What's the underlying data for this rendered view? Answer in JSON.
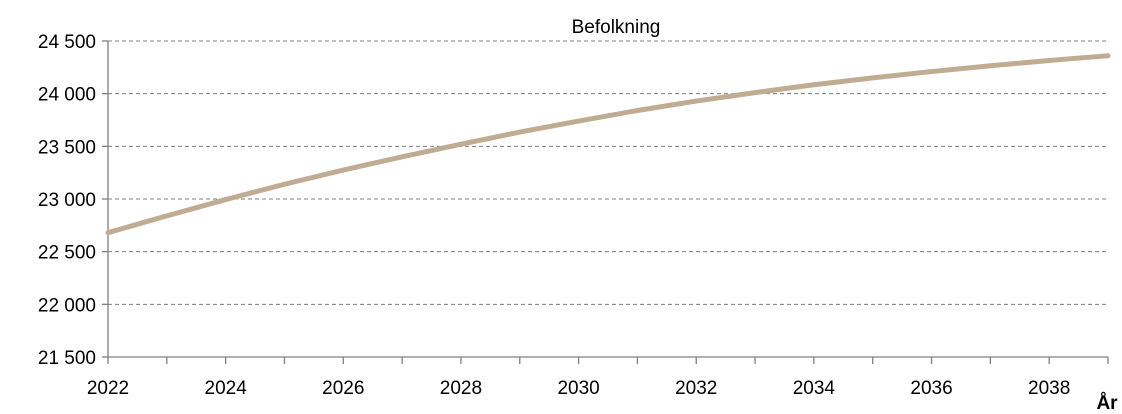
{
  "chart_data": {
    "type": "line",
    "title": "Befolkning",
    "xlabel": "År",
    "ylabel": "",
    "xlim": [
      2022,
      2039
    ],
    "ylim": [
      21500,
      24500
    ],
    "x_ticks": [
      2022,
      2023,
      2024,
      2025,
      2026,
      2027,
      2028,
      2029,
      2030,
      2031,
      2032,
      2033,
      2034,
      2035,
      2036,
      2037,
      2038,
      2039
    ],
    "x_tick_labels": [
      "2022",
      "2024",
      "2026",
      "2028",
      "2030",
      "2032",
      "2034",
      "2036",
      "2038"
    ],
    "x_tick_label_values": [
      2022,
      2024,
      2026,
      2028,
      2030,
      2032,
      2034,
      2036,
      2038
    ],
    "y_ticks": [
      21500,
      22000,
      22500,
      23000,
      23500,
      24000,
      24500
    ],
    "y_tick_labels": [
      "21 500",
      "22 000",
      "22 500",
      "23 000",
      "23 500",
      "24 000",
      "24 500"
    ],
    "grid": true,
    "legend": "none",
    "series": [
      {
        "color": "#bfac93",
        "x": [
          2022,
          2023,
          2024,
          2025,
          2026,
          2027,
          2028,
          2029,
          2030,
          2031,
          2032,
          2033,
          2034,
          2035,
          2036,
          2037,
          2038,
          2039
        ],
        "values": [
          22680,
          22840,
          22995,
          23140,
          23275,
          23400,
          23520,
          23635,
          23740,
          23840,
          23930,
          24010,
          24085,
          24150,
          24210,
          24265,
          24315,
          24360
        ]
      }
    ]
  }
}
